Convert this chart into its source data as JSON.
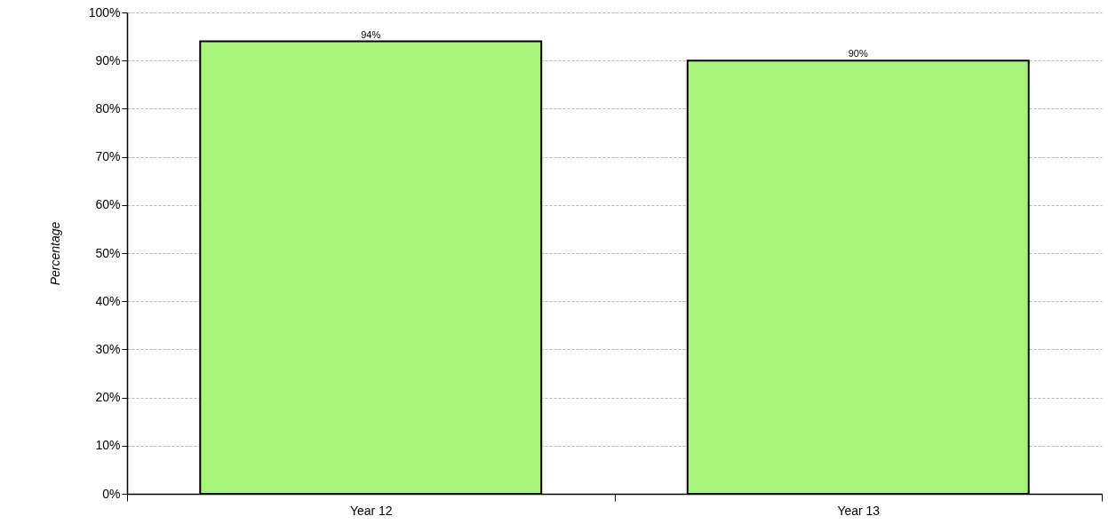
{
  "chart_data": {
    "type": "bar",
    "ylabel": "Percentage",
    "categories": [
      "Year 12",
      "Year 13"
    ],
    "values": [
      94,
      90
    ],
    "value_labels": [
      "94%",
      "90%"
    ],
    "color": "#a8f47a",
    "ylim": [
      0,
      100
    ],
    "yticks": [
      {
        "value": 0,
        "label": "0%"
      },
      {
        "value": 10,
        "label": "10%"
      },
      {
        "value": 20,
        "label": "20%"
      },
      {
        "value": 30,
        "label": "30%"
      },
      {
        "value": 40,
        "label": "40%"
      },
      {
        "value": 50,
        "label": "50%"
      },
      {
        "value": 60,
        "label": "60%"
      },
      {
        "value": 70,
        "label": "70%"
      },
      {
        "value": 80,
        "label": "80%"
      },
      {
        "value": 90,
        "label": "90%"
      },
      {
        "value": 100,
        "label": "100%"
      }
    ],
    "grid": "y"
  }
}
